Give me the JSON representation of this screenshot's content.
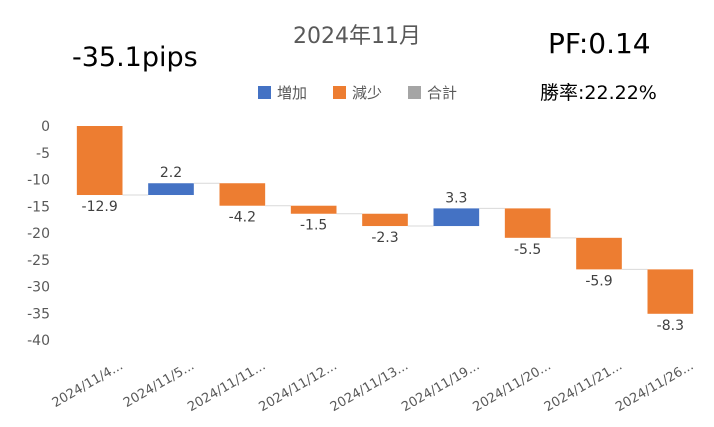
{
  "annotations": {
    "pips": "-35.1pips",
    "pf": "PF:0.14",
    "win_rate": "勝率:22.22%"
  },
  "legend": [
    {
      "label": "増加",
      "color": "#4472C4"
    },
    {
      "label": "減少",
      "color": "#ED7D31"
    },
    {
      "label": "合計",
      "color": "#A5A5A5"
    }
  ],
  "chart_data": {
    "type": "bar",
    "subtype": "waterfall",
    "title": "2024年11月",
    "categories": [
      "2024/11/4...",
      "2024/11/5...",
      "2024/11/11...",
      "2024/11/12...",
      "2024/11/13...",
      "2024/11/19...",
      "2024/11/20...",
      "2024/11/21...",
      "2024/11/26..."
    ],
    "values": [
      -12.9,
      2.2,
      -4.2,
      -1.5,
      -2.3,
      3.3,
      -5.5,
      -5.9,
      -8.3
    ],
    "data_labels": [
      "-12.9",
      "2.2",
      "-4.2",
      "-1.5",
      "-2.3",
      "3.3",
      "-5.5",
      "-5.9",
      "-8.3"
    ],
    "ylim": [
      -40,
      0
    ],
    "yticks": [
      0,
      -5,
      -10,
      -15,
      -20,
      -25,
      -30,
      -35,
      -40
    ],
    "ytick_labels": [
      "0",
      "-5",
      "-10",
      "-15",
      "-20",
      "-25",
      "-30",
      "-35",
      "-40"
    ],
    "grid": false,
    "legend_position": "top",
    "colors": {
      "increase": "#4472C4",
      "decrease": "#ED7D31",
      "total": "#A5A5A5"
    }
  }
}
